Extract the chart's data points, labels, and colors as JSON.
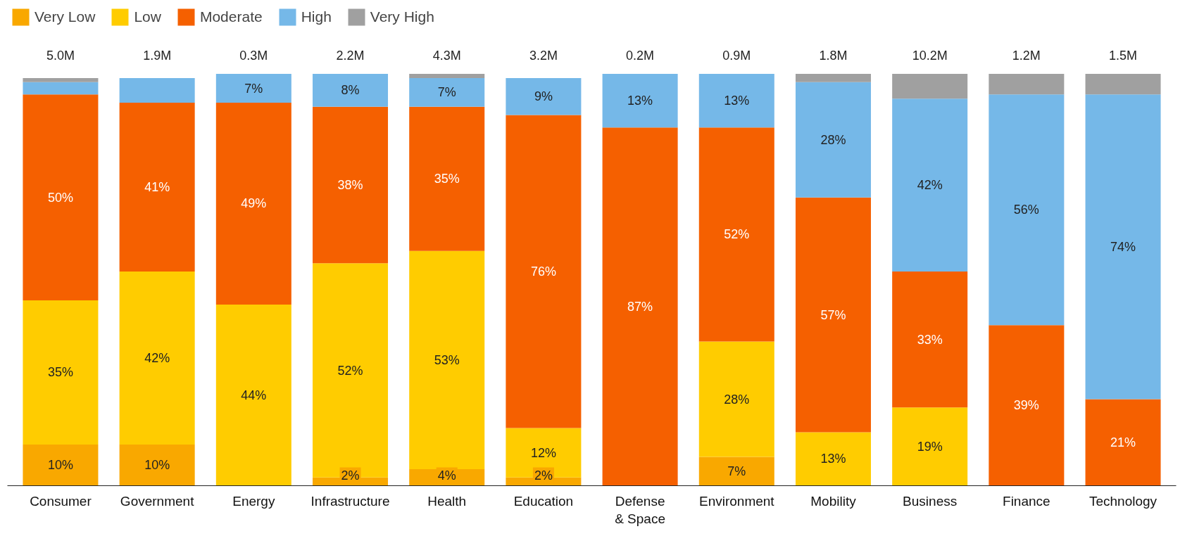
{
  "chart_data": {
    "type": "bar",
    "stacked": true,
    "legend": "top left",
    "grid": false,
    "categories": [
      "Consumer",
      "Government",
      "Energy",
      "Infrastructure",
      "Health",
      "Education",
      "Defense\n& Space",
      "Environment",
      "Mobility",
      "Business",
      "Finance",
      "Technology"
    ],
    "series": [
      {
        "name": "Very Low",
        "color": "#f9a800",
        "values": [
          10,
          10,
          0,
          2,
          4,
          2,
          0,
          7,
          0,
          0,
          0,
          0
        ],
        "value_labels": [
          "10%",
          "10%",
          null,
          "2%",
          "4%",
          "2%",
          null,
          "7%",
          null,
          null,
          null,
          null
        ]
      },
      {
        "name": "Low",
        "color": "#ffcc00",
        "values": [
          35,
          42,
          44,
          52,
          53,
          12,
          0,
          28,
          13,
          19,
          0,
          0
        ],
        "value_labels": [
          "35%",
          "42%",
          "44%",
          "52%",
          "53%",
          "12%",
          null,
          "28%",
          "13%",
          "19%",
          null,
          null
        ]
      },
      {
        "name": "Moderate",
        "color": "#f56000",
        "values": [
          50,
          41,
          49,
          38,
          35,
          76,
          87,
          52,
          57,
          33,
          39,
          21
        ],
        "value_labels": [
          "50%",
          "41%",
          "49%",
          "38%",
          "35%",
          "76%",
          "87%",
          "52%",
          "57%",
          "33%",
          "39%",
          "21%"
        ]
      },
      {
        "name": "High",
        "color": "#75b8e8",
        "values": [
          3,
          6,
          7,
          8,
          7,
          9,
          13,
          13,
          28,
          42,
          56,
          74
        ],
        "value_labels": [
          null,
          null,
          "7%",
          "8%",
          "7%",
          "9%",
          "13%",
          "13%",
          "28%",
          "42%",
          "56%",
          "74%"
        ]
      },
      {
        "name": "Very High",
        "color": "#a0a0a0",
        "values": [
          1,
          0,
          0,
          0,
          1,
          0,
          0,
          0,
          2,
          6,
          5,
          5
        ],
        "value_labels": [
          null,
          null,
          null,
          null,
          null,
          null,
          null,
          null,
          null,
          null,
          null,
          null
        ]
      }
    ],
    "annotations": [
      "5.0M",
      "1.9M",
      "0.3M",
      "2.2M",
      "4.3M",
      "3.2M",
      "0.2M",
      "0.9M",
      "1.8M",
      "10.2M",
      "1.2M",
      "1.5M"
    ]
  }
}
